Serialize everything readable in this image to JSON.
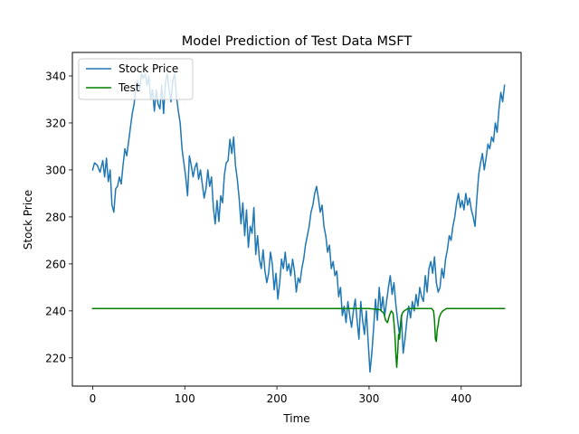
{
  "chart_data": {
    "type": "line",
    "title": "Model Prediction of Test Data MSFT",
    "xlabel": "Time",
    "ylabel": "Stock Price",
    "xlim": [
      -22,
      465
    ],
    "ylim": [
      208,
      350
    ],
    "xticks": [
      0,
      100,
      200,
      300,
      400
    ],
    "yticks": [
      220,
      240,
      260,
      280,
      300,
      320,
      340
    ],
    "grid": false,
    "legend": {
      "placement": "top-left"
    },
    "series": [
      {
        "name": "Stock Price",
        "color": "#1f77b4",
        "points": [
          [
            0,
            300
          ],
          [
            2,
            303
          ],
          [
            5,
            302
          ],
          [
            8,
            299
          ],
          [
            11,
            304
          ],
          [
            13,
            297
          ],
          [
            15,
            305
          ],
          [
            17,
            295
          ],
          [
            19,
            300
          ],
          [
            21,
            285
          ],
          [
            23,
            282
          ],
          [
            25,
            292
          ],
          [
            27,
            293
          ],
          [
            29,
            297
          ],
          [
            31,
            294
          ],
          [
            33,
            302
          ],
          [
            35,
            309
          ],
          [
            37,
            306
          ],
          [
            39,
            312
          ],
          [
            41,
            318
          ],
          [
            43,
            324
          ],
          [
            45,
            328
          ],
          [
            47,
            336
          ],
          [
            49,
            338
          ],
          [
            51,
            334
          ],
          [
            53,
            341
          ],
          [
            55,
            339
          ],
          [
            57,
            341
          ],
          [
            59,
            336
          ],
          [
            61,
            340
          ],
          [
            63,
            330
          ],
          [
            65,
            334
          ],
          [
            67,
            325
          ],
          [
            69,
            334
          ],
          [
            71,
            328
          ],
          [
            73,
            326
          ],
          [
            75,
            336
          ],
          [
            77,
            324
          ],
          [
            79,
            337
          ],
          [
            81,
            341
          ],
          [
            83,
            334
          ],
          [
            85,
            329
          ],
          [
            87,
            338
          ],
          [
            89,
            341
          ],
          [
            91,
            331
          ],
          [
            93,
            325
          ],
          [
            95,
            320
          ],
          [
            97,
            309
          ],
          [
            99,
            303
          ],
          [
            101,
            297
          ],
          [
            103,
            289
          ],
          [
            105,
            306
          ],
          [
            107,
            302
          ],
          [
            109,
            297
          ],
          [
            111,
            301
          ],
          [
            113,
            303
          ],
          [
            115,
            296
          ],
          [
            117,
            300
          ],
          [
            119,
            294
          ],
          [
            121,
            288
          ],
          [
            123,
            292
          ],
          [
            125,
            300
          ],
          [
            127,
            293
          ],
          [
            129,
            297
          ],
          [
            131,
            284
          ],
          [
            133,
            277
          ],
          [
            135,
            287
          ],
          [
            137,
            278
          ],
          [
            139,
            289
          ],
          [
            141,
            286
          ],
          [
            143,
            298
          ],
          [
            145,
            303
          ],
          [
            147,
            304
          ],
          [
            149,
            313
          ],
          [
            151,
            307
          ],
          [
            153,
            314
          ],
          [
            155,
            302
          ],
          [
            157,
            296
          ],
          [
            159,
            288
          ],
          [
            161,
            277
          ],
          [
            163,
            286
          ],
          [
            165,
            272
          ],
          [
            167,
            283
          ],
          [
            169,
            267
          ],
          [
            171,
            276
          ],
          [
            173,
            273
          ],
          [
            175,
            284
          ],
          [
            177,
            264
          ],
          [
            179,
            272
          ],
          [
            181,
            262
          ],
          [
            183,
            258
          ],
          [
            185,
            266
          ],
          [
            187,
            257
          ],
          [
            189,
            252
          ],
          [
            191,
            256
          ],
          [
            193,
            265
          ],
          [
            195,
            260
          ],
          [
            197,
            249
          ],
          [
            199,
            256
          ],
          [
            201,
            245
          ],
          [
            203,
            252
          ],
          [
            205,
            262
          ],
          [
            207,
            258
          ],
          [
            209,
            265
          ],
          [
            211,
            257
          ],
          [
            213,
            260
          ],
          [
            215,
            255
          ],
          [
            217,
            262
          ],
          [
            219,
            257
          ],
          [
            221,
            248
          ],
          [
            223,
            254
          ],
          [
            225,
            252
          ],
          [
            227,
            258
          ],
          [
            229,
            262
          ],
          [
            231,
            268
          ],
          [
            233,
            272
          ],
          [
            235,
            276
          ],
          [
            237,
            282
          ],
          [
            239,
            285
          ],
          [
            241,
            290
          ],
          [
            243,
            293
          ],
          [
            245,
            288
          ],
          [
            247,
            282
          ],
          [
            249,
            285
          ],
          [
            251,
            276
          ],
          [
            253,
            272
          ],
          [
            255,
            265
          ],
          [
            257,
            268
          ],
          [
            259,
            258
          ],
          [
            261,
            261
          ],
          [
            263,
            255
          ],
          [
            265,
            257
          ],
          [
            267,
            246
          ],
          [
            269,
            250
          ],
          [
            271,
            238
          ],
          [
            273,
            242
          ],
          [
            275,
            235
          ],
          [
            277,
            244
          ],
          [
            279,
            238
          ],
          [
            281,
            233
          ],
          [
            283,
            240
          ],
          [
            285,
            245
          ],
          [
            287,
            236
          ],
          [
            289,
            228
          ],
          [
            291,
            244
          ],
          [
            293,
            236
          ],
          [
            295,
            230
          ],
          [
            297,
            240
          ],
          [
            299,
            227
          ],
          [
            301,
            214
          ],
          [
            303,
            222
          ],
          [
            305,
            233
          ],
          [
            307,
            245
          ],
          [
            309,
            236
          ],
          [
            311,
            250
          ],
          [
            313,
            240
          ],
          [
            315,
            246
          ],
          [
            317,
            238
          ],
          [
            319,
            244
          ],
          [
            321,
            250
          ],
          [
            323,
            255
          ],
          [
            325,
            247
          ],
          [
            327,
            252
          ],
          [
            329,
            243
          ],
          [
            331,
            236
          ],
          [
            333,
            230
          ],
          [
            335,
            238
          ],
          [
            337,
            222
          ],
          [
            339,
            228
          ],
          [
            341,
            236
          ],
          [
            343,
            242
          ],
          [
            345,
            237
          ],
          [
            347,
            244
          ],
          [
            349,
            240
          ],
          [
            351,
            247
          ],
          [
            353,
            242
          ],
          [
            355,
            250
          ],
          [
            357,
            246
          ],
          [
            359,
            244
          ],
          [
            361,
            255
          ],
          [
            363,
            248
          ],
          [
            365,
            258
          ],
          [
            367,
            261
          ],
          [
            369,
            256
          ],
          [
            371,
            263
          ],
          [
            373,
            252
          ],
          [
            375,
            248
          ],
          [
            377,
            250
          ],
          [
            379,
            258
          ],
          [
            381,
            254
          ],
          [
            383,
            262
          ],
          [
            385,
            266
          ],
          [
            387,
            272
          ],
          [
            389,
            270
          ],
          [
            391,
            276
          ],
          [
            393,
            280
          ],
          [
            395,
            286
          ],
          [
            397,
            290
          ],
          [
            399,
            284
          ],
          [
            401,
            287
          ],
          [
            403,
            283
          ],
          [
            405,
            290
          ],
          [
            407,
            285
          ],
          [
            409,
            288
          ],
          [
            411,
            283
          ],
          [
            413,
            280
          ],
          [
            415,
            276
          ],
          [
            417,
            288
          ],
          [
            419,
            298
          ],
          [
            421,
            303
          ],
          [
            423,
            307
          ],
          [
            425,
            300
          ],
          [
            427,
            305
          ],
          [
            429,
            311
          ],
          [
            431,
            309
          ],
          [
            433,
            314
          ],
          [
            435,
            312
          ],
          [
            437,
            320
          ],
          [
            439,
            316
          ],
          [
            441,
            326
          ],
          [
            443,
            333
          ],
          [
            445,
            329
          ],
          [
            447,
            336
          ]
        ]
      },
      {
        "name": "Test",
        "color": "#008000",
        "points": [
          [
            0,
            241
          ],
          [
            100,
            241
          ],
          [
            200,
            241
          ],
          [
            300,
            241
          ],
          [
            312,
            240.5
          ],
          [
            316,
            239
          ],
          [
            318,
            236
          ],
          [
            320,
            235
          ],
          [
            322,
            238
          ],
          [
            324,
            240
          ],
          [
            326,
            239
          ],
          [
            327,
            235
          ],
          [
            328,
            230
          ],
          [
            329,
            222
          ],
          [
            330,
            216
          ],
          [
            331,
            222
          ],
          [
            332,
            230
          ],
          [
            333,
            228
          ],
          [
            334,
            233
          ],
          [
            335,
            237
          ],
          [
            336,
            239
          ],
          [
            338,
            240
          ],
          [
            342,
            241
          ],
          [
            346,
            241
          ],
          [
            350,
            241
          ],
          [
            360,
            241
          ],
          [
            368,
            241
          ],
          [
            370,
            240
          ],
          [
            371,
            236
          ],
          [
            372,
            228
          ],
          [
            373,
            227
          ],
          [
            374,
            232
          ],
          [
            375,
            234
          ],
          [
            376,
            237
          ],
          [
            378,
            239
          ],
          [
            380,
            240
          ],
          [
            384,
            241
          ],
          [
            395,
            241
          ],
          [
            400,
            241
          ],
          [
            405,
            241
          ],
          [
            420,
            241
          ],
          [
            447,
            241
          ]
        ]
      }
    ]
  }
}
